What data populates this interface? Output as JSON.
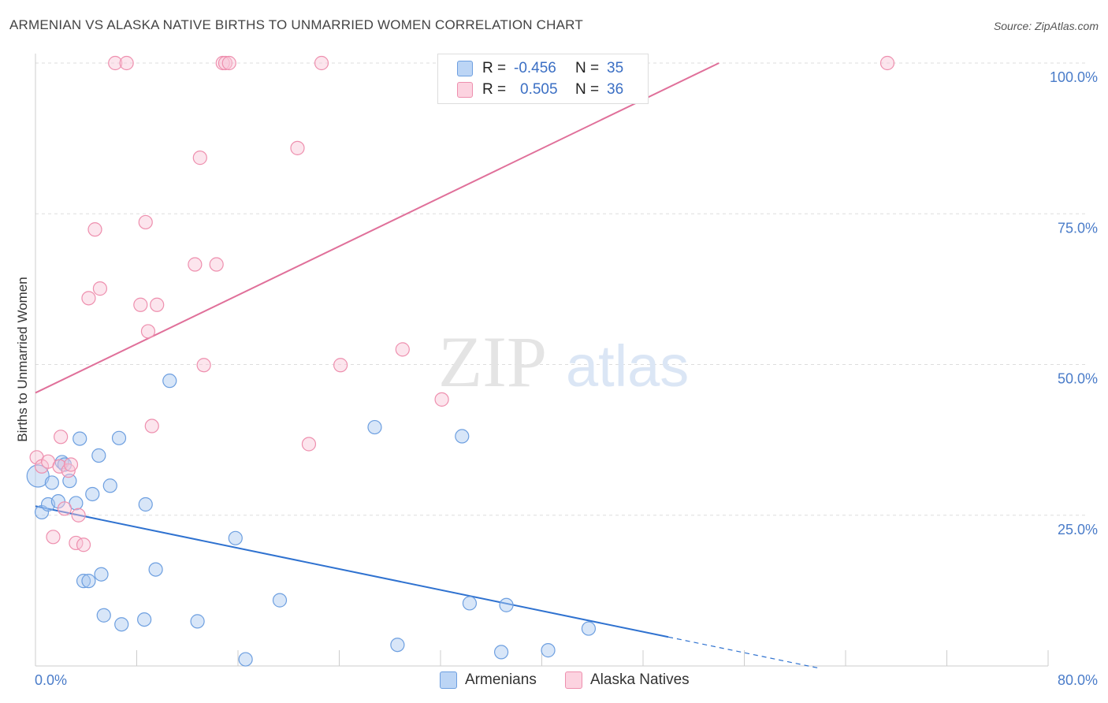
{
  "title": "ARMENIAN VS ALASKA NATIVE BIRTHS TO UNMARRIED WOMEN CORRELATION CHART",
  "source": "Source: ZipAtlas.com",
  "watermark": {
    "zip": "ZIP",
    "atlas": "atlas"
  },
  "legend": {
    "rows": [
      {
        "r_label": "R =",
        "r_value": "-0.456",
        "n_label": "N =",
        "n_value": "35",
        "color": "#a8c8f0",
        "border": "#6d9fe0"
      },
      {
        "r_label": "R =",
        "r_value": "0.505",
        "n_label": "N =",
        "n_value": "36",
        "color": "#f9c6d6",
        "border": "#ee8fae"
      }
    ]
  },
  "bottom_legend": [
    {
      "label": "Armenians",
      "color": "#bcd5f5",
      "border": "#6d9fe0"
    },
    {
      "label": "Alaska Natives",
      "color": "#fcd3e0",
      "border": "#ee8fae"
    }
  ],
  "chart_data": {
    "type": "scatter",
    "title": "ARMENIAN VS ALASKA NATIVE BIRTHS TO UNMARRIED WOMEN CORRELATION CHART",
    "xlabel": "",
    "ylabel": "Births to Unmarried Women",
    "xlim": [
      0,
      80
    ],
    "ylim": [
      0,
      100
    ],
    "x_tick_labels": [
      "0.0%",
      "80.0%"
    ],
    "y_tick_labels": [
      "100.0%",
      "75.0%",
      "50.0%",
      "25.0%"
    ],
    "y_ticks": [
      100,
      75,
      50,
      25
    ],
    "series": [
      {
        "name": "Armenians",
        "color": "#6d9fe0",
        "fill": "rgba(168,200,240,0.45)",
        "trend": {
          "x0": 0,
          "y0": 26.5,
          "x1": 50,
          "y1": 4.8,
          "dash_to_x": 62,
          "color": "#2f72d0"
        },
        "points": [
          [
            0.2,
            31.5
          ],
          [
            0.5,
            25.5
          ],
          [
            1.0,
            26.8
          ],
          [
            1.3,
            30.4
          ],
          [
            1.8,
            27.3
          ],
          [
            2.1,
            33.8
          ],
          [
            2.3,
            33.4
          ],
          [
            2.7,
            30.7
          ],
          [
            3.2,
            27.0
          ],
          [
            3.5,
            37.7
          ],
          [
            3.8,
            14.1
          ],
          [
            4.2,
            14.1
          ],
          [
            4.5,
            28.5
          ],
          [
            5.0,
            34.9
          ],
          [
            5.2,
            15.2
          ],
          [
            5.4,
            8.4
          ],
          [
            5.9,
            29.9
          ],
          [
            6.6,
            37.8
          ],
          [
            6.8,
            6.9
          ],
          [
            8.6,
            7.7
          ],
          [
            8.7,
            26.8
          ],
          [
            9.5,
            16.0
          ],
          [
            10.6,
            47.3
          ],
          [
            12.8,
            7.4
          ],
          [
            15.8,
            21.2
          ],
          [
            16.6,
            1.1
          ],
          [
            19.3,
            10.9
          ],
          [
            26.8,
            39.6
          ],
          [
            28.6,
            3.5
          ],
          [
            33.7,
            38.1
          ],
          [
            34.3,
            10.4
          ],
          [
            36.8,
            2.3
          ],
          [
            37.2,
            10.1
          ],
          [
            40.5,
            2.6
          ],
          [
            43.7,
            6.2
          ]
        ]
      },
      {
        "name": "Alaska Natives",
        "color": "#ee8fae",
        "fill": "rgba(249,198,214,0.45)",
        "trend": {
          "x0": 0,
          "y0": 45.3,
          "x1": 54,
          "y1": 100,
          "color": "#e0709a"
        },
        "points": [
          [
            0.1,
            34.6
          ],
          [
            0.5,
            33.1
          ],
          [
            1.0,
            33.9
          ],
          [
            1.4,
            21.4
          ],
          [
            1.9,
            33.1
          ],
          [
            2.0,
            38.0
          ],
          [
            2.3,
            26.1
          ],
          [
            2.6,
            32.4
          ],
          [
            2.8,
            33.4
          ],
          [
            3.2,
            20.4
          ],
          [
            3.4,
            25.0
          ],
          [
            3.8,
            20.1
          ],
          [
            4.2,
            61.0
          ],
          [
            4.7,
            72.4
          ],
          [
            5.1,
            62.6
          ],
          [
            6.3,
            100.0
          ],
          [
            7.2,
            100.0
          ],
          [
            8.3,
            59.9
          ],
          [
            8.7,
            73.6
          ],
          [
            8.9,
            55.5
          ],
          [
            9.2,
            39.8
          ],
          [
            9.6,
            59.9
          ],
          [
            12.6,
            66.6
          ],
          [
            13.0,
            84.3
          ],
          [
            13.3,
            49.9
          ],
          [
            14.3,
            66.6
          ],
          [
            14.8,
            100.0
          ],
          [
            15.0,
            100.0
          ],
          [
            15.3,
            100.0
          ],
          [
            20.7,
            85.9
          ],
          [
            21.6,
            36.8
          ],
          [
            22.6,
            100.0
          ],
          [
            24.1,
            49.9
          ],
          [
            29.0,
            52.5
          ],
          [
            32.1,
            44.2
          ],
          [
            67.3,
            100.0
          ]
        ]
      }
    ]
  }
}
